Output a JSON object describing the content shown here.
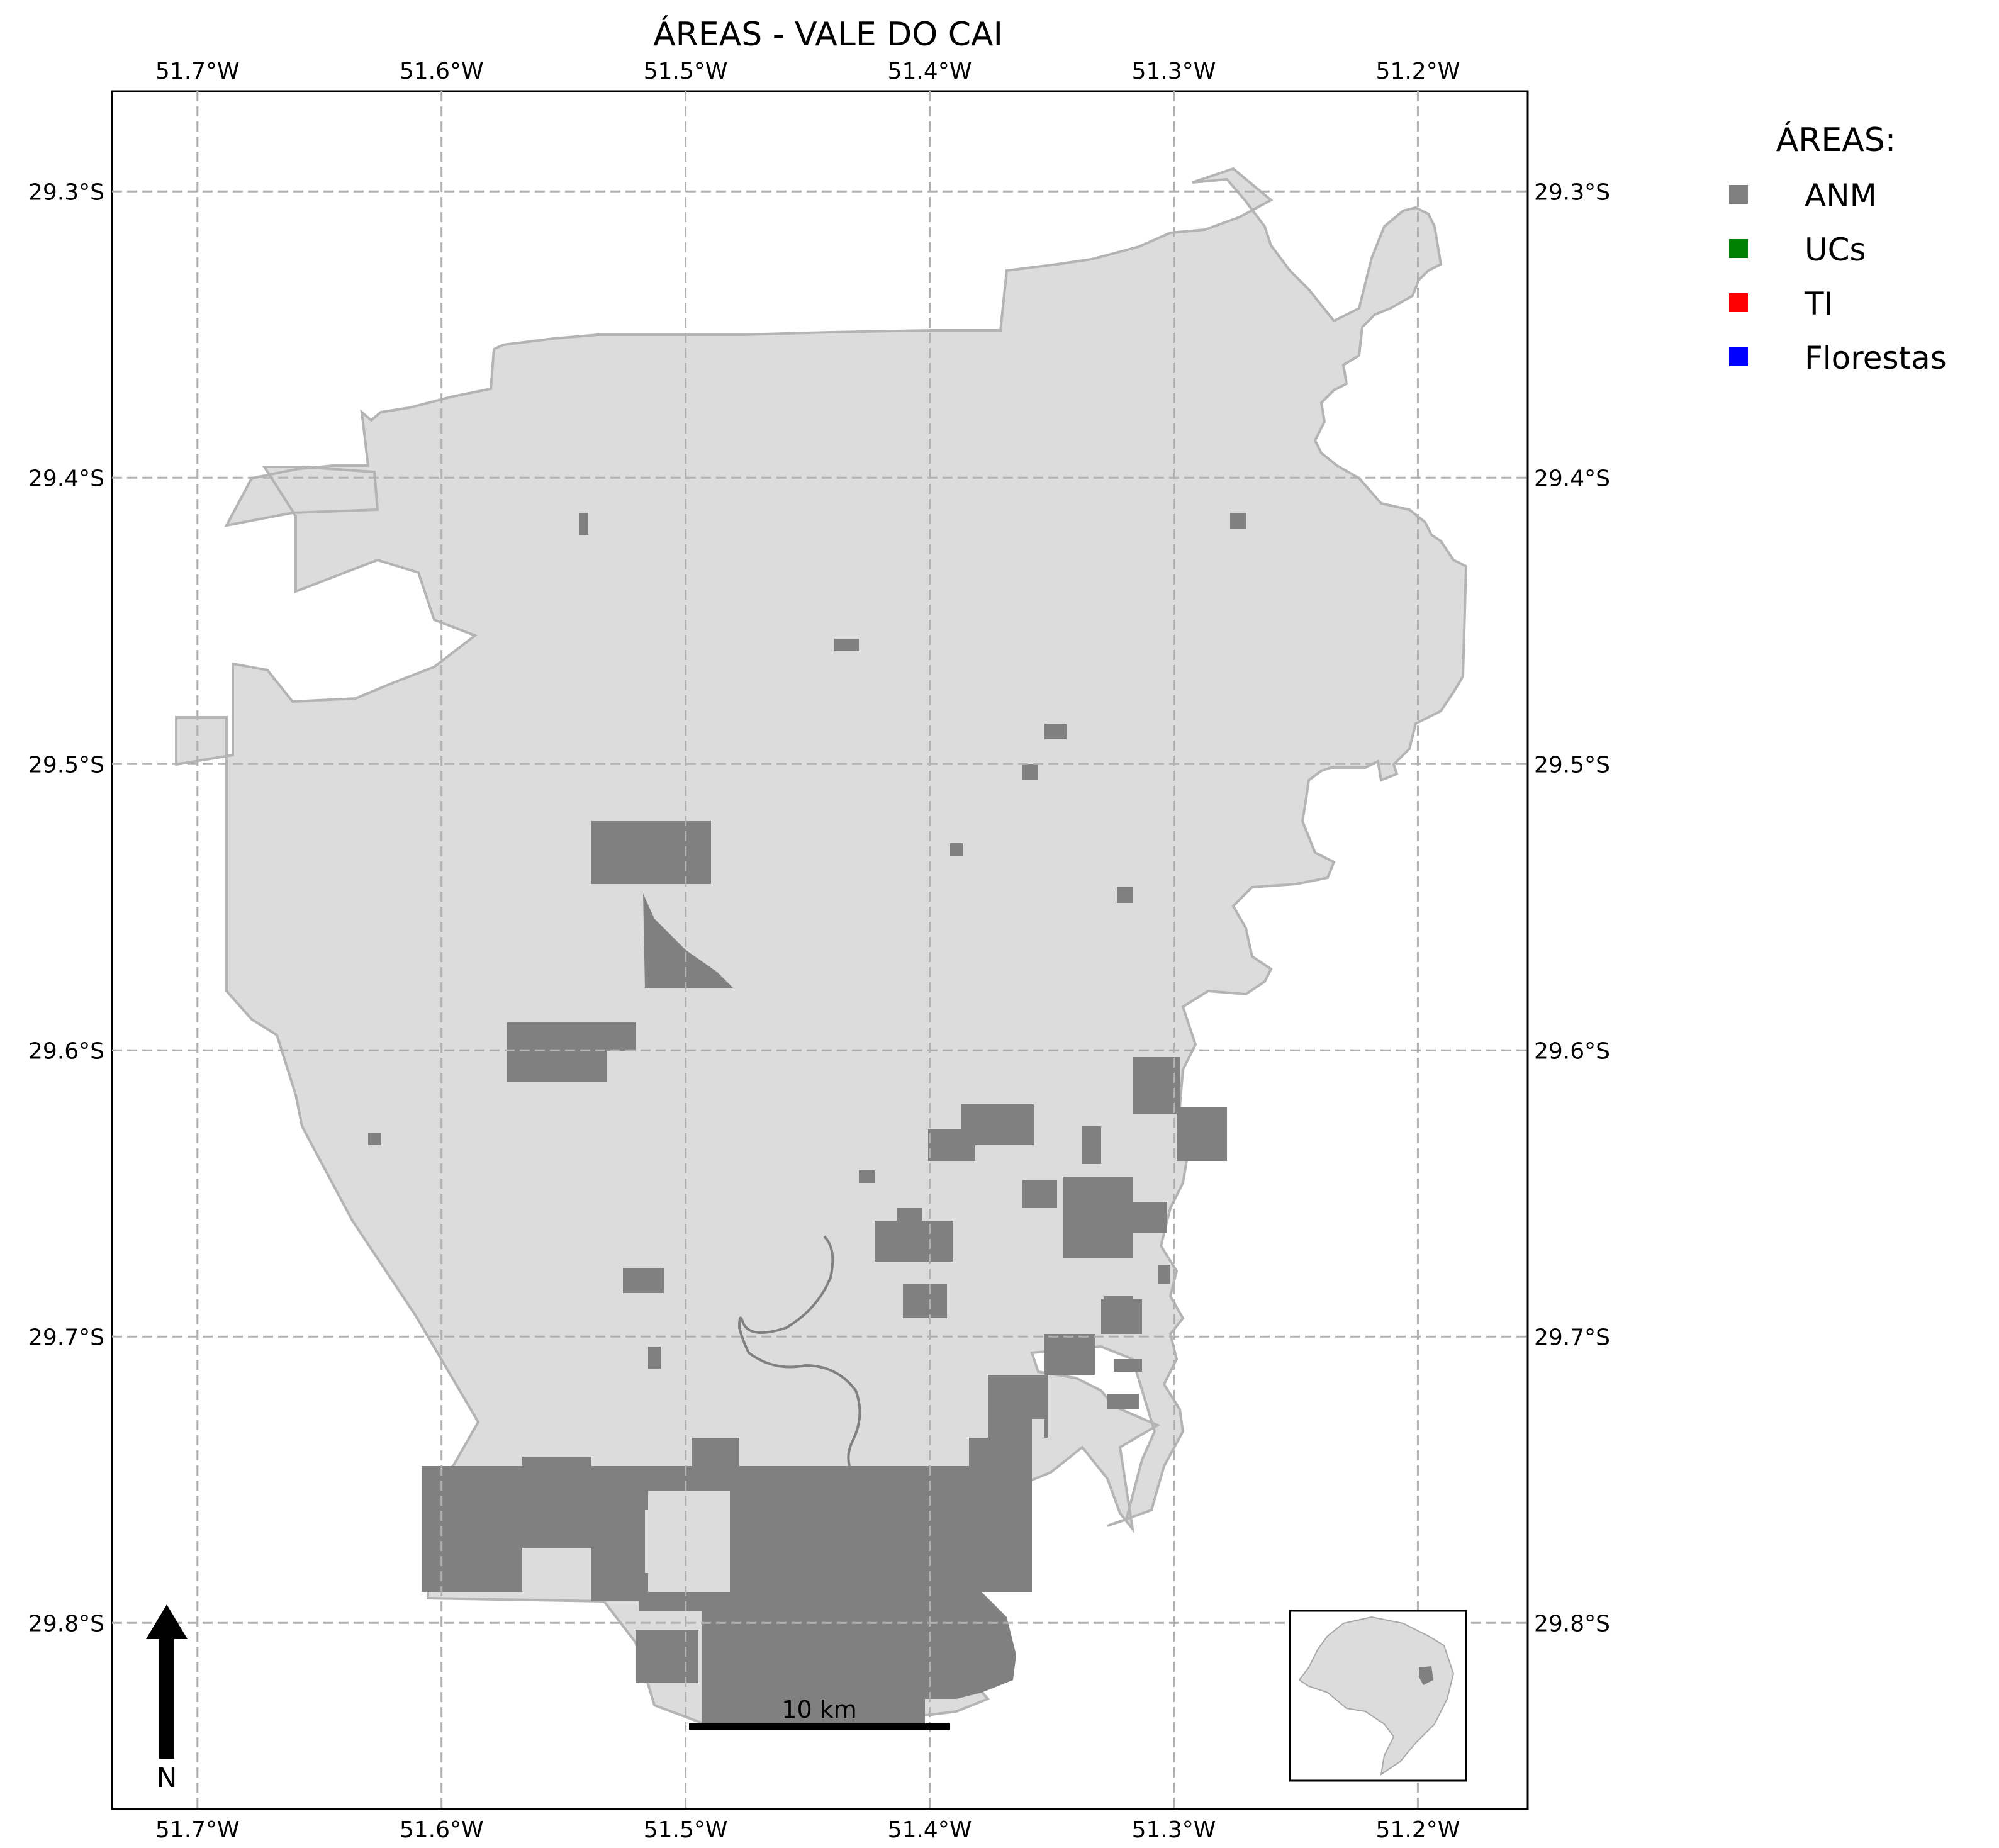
{
  "title": "ÁREAS - VALE DO CAI",
  "map": {
    "lon_range": [
      -51.735,
      -51.155
    ],
    "lat_range": [
      -29.865,
      -29.265
    ],
    "lon_ticks": [
      {
        "value": -51.7,
        "label": "51.7°W"
      },
      {
        "value": -51.6,
        "label": "51.6°W"
      },
      {
        "value": -51.5,
        "label": "51.5°W"
      },
      {
        "value": -51.4,
        "label": "51.4°W"
      },
      {
        "value": -51.3,
        "label": "51.3°W"
      },
      {
        "value": -51.2,
        "label": "51.2°W"
      }
    ],
    "lat_ticks": [
      {
        "value": -29.3,
        "label": "29.3°S"
      },
      {
        "value": -29.4,
        "label": "29.4°S"
      },
      {
        "value": -29.5,
        "label": "29.5°S"
      },
      {
        "value": -29.6,
        "label": "29.6°S"
      },
      {
        "value": -29.7,
        "label": "29.7°S"
      },
      {
        "value": -29.8,
        "label": "29.8°S"
      }
    ],
    "gridlines": true,
    "region_fill": "#dcdcdc",
    "region_stroke": "#b4b4b4"
  },
  "legend": {
    "title": "ÁREAS:",
    "placement": "right-outside",
    "items": [
      {
        "label": "ANM",
        "color": "#808080"
      },
      {
        "label": "UCs",
        "color": "#008000"
      },
      {
        "label": "TI",
        "color": "#ff0000"
      },
      {
        "label": "Florestas",
        "color": "#0000ff"
      }
    ]
  },
  "scale_bar": {
    "label": "10 km"
  },
  "north_arrow": {
    "label": "N"
  },
  "inset": {
    "description_name": "locator-map"
  }
}
